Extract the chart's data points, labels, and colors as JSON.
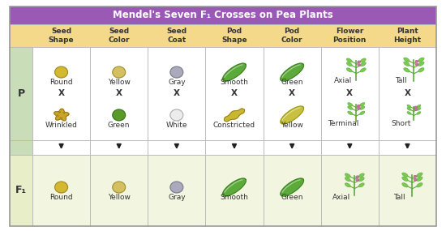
{
  "title": "Mendel's Seven F₁ Crosses on Pea Plants",
  "title_bg": "#9B59B6",
  "title_color": "white",
  "header_bg": "#F5D98B",
  "header_color": "#333333",
  "p_row_bg": "#FFFFFF",
  "f1_row_bg": "#F2F5E0",
  "left_col_bg_p": "#C8DDB8",
  "left_col_bg_f1": "#E8EFC8",
  "arrow_row_bg": "#FFFFFF",
  "border_color": "#BBBBBB",
  "outer_border": "#999999",
  "columns": [
    "Seed\nShape",
    "Seed\nColor",
    "Seed\nCoat",
    "Pod\nShape",
    "Pod\nColor",
    "Flower\nPosition",
    "Plant\nHeight"
  ],
  "p_top": [
    "Round",
    "Yellow",
    "Gray",
    "Smooth",
    "Green",
    "Axial",
    "Tall"
  ],
  "p_bottom": [
    "Wrinkled",
    "Green",
    "White",
    "Constricted",
    "Yellow",
    "Terminal",
    "Short"
  ],
  "f1": [
    "Round",
    "Yellow",
    "Gray",
    "Smooth",
    "Green",
    "Axial",
    "Tall"
  ],
  "p_label": "P",
  "f1_label": "F₁",
  "seed_round_yellow": [
    "#D4B830",
    "#A08820"
  ],
  "seed_round_yellow2": [
    "#D4C060",
    "#A09030"
  ],
  "seed_round_green": [
    "#5A9A28",
    "#3A7018"
  ],
  "seed_round_gray": [
    "#AAAABC",
    "#777788"
  ],
  "seed_round_white": [
    "#ECECEC",
    "#AAAAAA"
  ],
  "pod_smooth_green": "#5BAA3A",
  "pod_smooth_green_edge": "#3A7A20",
  "pod_constricted_yellow": "#C8B830",
  "pod_constricted_yellow_edge": "#907820",
  "pod_smooth_yellow": "#C8C040",
  "pod_smooth_yellow_edge": "#909010",
  "plant_stem": "#5BAA3A",
  "plant_leaf": "#7ACC50",
  "text_color": "#333333",
  "figwidth": 5.5,
  "figheight": 2.85,
  "dpi": 100
}
